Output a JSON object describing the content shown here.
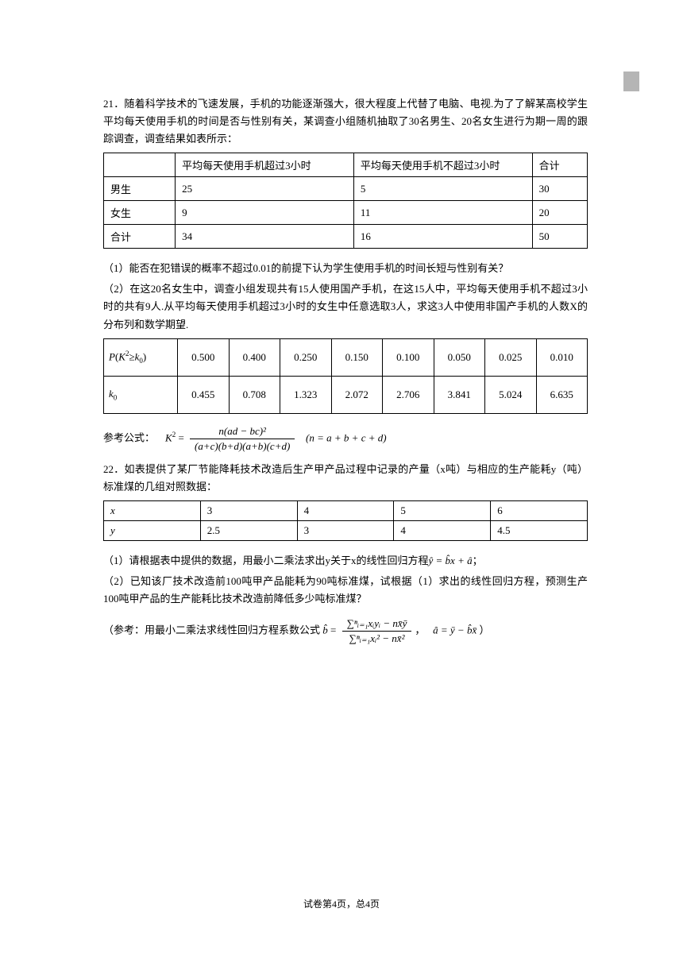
{
  "q21": {
    "intro": "21．随着科学技术的飞速发展，手机的功能逐渐强大，很大程度上代替了电脑、电视.为了了解某高校学生平均每天使用手机的时间是否与性别有关，某调查小组随机抽取了30名男生、20名女生进行为期一周的跟踪调查，调查结果如表所示：",
    "table1": {
      "headers": [
        "",
        "平均每天使用手机超过3小时",
        "平均每天使用手机不超过3小时",
        "合计"
      ],
      "rows": [
        [
          "男生",
          "25",
          "5",
          "30"
        ],
        [
          "女生",
          "9",
          "11",
          "20"
        ],
        [
          "合计",
          "34",
          "16",
          "50"
        ]
      ]
    },
    "q1": "（1）能否在犯错误的概率不超过0.01的前提下认为学生使用手机的时间长短与性别有关？",
    "q2": "（2）在这20名女生中，调查小组发现共有15人使用国产手机，在这15人中，平均每天使用手机不超过3小时的共有9人.从平均每天使用手机超过3小时的女生中任意选取3人，求这3人中使用非国产手机的人数X的分布列和数学期望.",
    "table2": {
      "row1_label": "P(K²≥k₀)",
      "row1": [
        "0.500",
        "0.400",
        "0.250",
        "0.150",
        "0.100",
        "0.050",
        "0.025",
        "0.010"
      ],
      "row2_label": "k₀",
      "row2": [
        "0.455",
        "0.708",
        "1.323",
        "2.072",
        "2.706",
        "3.841",
        "5.024",
        "6.635"
      ]
    },
    "formula_label": "参考公式：",
    "formula_K": "K²",
    "formula_num": "n(ad − bc)²",
    "formula_den": "(a+c)(b+d)(a+b)(c+d)",
    "formula_tail": "(n = a + b + c + d)"
  },
  "q22": {
    "intro": "22．如表提供了某厂节能降耗技术改造后生产甲产品过程中记录的产量（x吨）与相应的生产能耗y（吨）标准煤的几组对照数据：",
    "table": {
      "row1": [
        "x",
        "3",
        "4",
        "5",
        "6"
      ],
      "row2": [
        "y",
        "2.5",
        "3",
        "4",
        "4.5"
      ]
    },
    "q1_a": "（1）请根据表中提供的数据，用最小二乘法求出y关于x的线性回归方程",
    "q1_b": "ŷ = b̂x + â",
    "q1_c": "；",
    "q2": "（2）已知该厂技术改造前100吨甲产品能耗为90吨标准煤，试根据（1）求出的线性回归方程，预测生产100吨甲产品的生产能耗比技术改造前降低多少吨标准煤？",
    "ref_a": "（参考：用最小二乘法求线性回归方程系数公式",
    "ref_bhat": "b̂",
    "ref_num": "∑ⁿᵢ₌₁xᵢyᵢ − nx̄ȳ",
    "ref_den": "∑ⁿᵢ₌₁xᵢ² − nx̄²",
    "ref_comma": "，",
    "ref_ahat": "â = ȳ − b̂x̄",
    "ref_close": "）"
  },
  "footer": "试卷第4页，总4页"
}
